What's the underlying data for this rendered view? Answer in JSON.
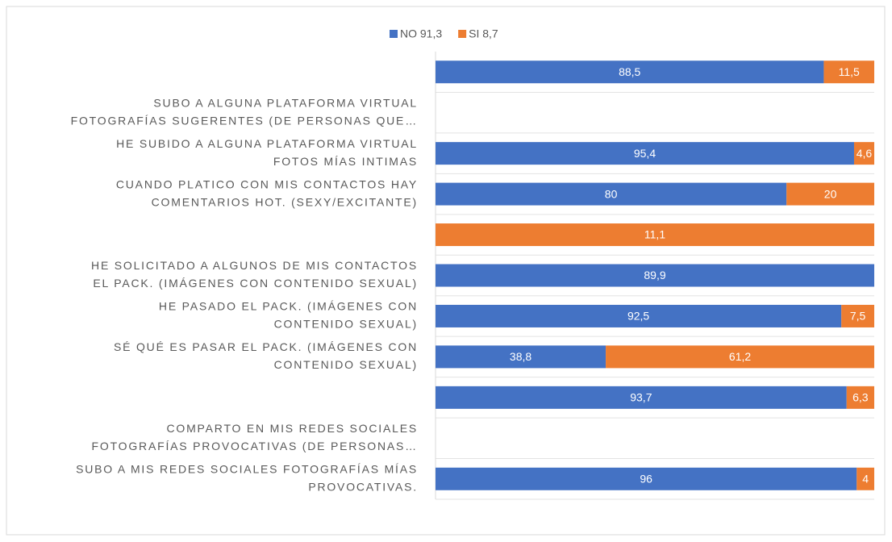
{
  "chart_data": {
    "type": "stacked_percent_bar",
    "categories": [
      null,
      [
        "SUBO A ALGUNA PLATAFORMA VIRTUAL",
        "FOTOGRAFÍAS SUGERENTES (DE PERSONAS QUE…"
      ],
      [
        "HE SUBIDO A ALGUNA PLATAFORMA VIRTUAL",
        "FOTOS MÍAS INTIMAS"
      ],
      [
        "CUANDO PLATICO CON MIS CONTACTOS HAY",
        "COMENTARIOS HOT. (SEXY/EXCITANTE)"
      ],
      null,
      [
        "HE SOLICITADO A ALGUNOS DE MIS CONTACTOS",
        "EL PACK. (IMÁGENES CON CONTENIDO SEXUAL)"
      ],
      [
        "HE PASADO EL PACK. (IMÁGENES CON",
        "CONTENIDO SEXUAL)"
      ],
      [
        "SÉ QUÉ ES PASAR EL PACK. (IMÁGENES CON",
        "CONTENIDO SEXUAL)"
      ],
      null,
      [
        "COMPARTO EN MIS REDES SOCIALES",
        "FOTOGRAFÍAS PROVOCATIVAS (DE PERSONAS…"
      ],
      [
        "SUBO A MIS REDES SOCIALES FOTOGRAFÍAS MÍAS",
        "PROVOCATIVAS."
      ]
    ],
    "series": [
      {
        "name": "NO 91,3",
        "color": "#4472c4",
        "values": [
          88.5,
          null,
          95.4,
          80,
          null,
          89.9,
          92.5,
          38.8,
          93.7,
          null,
          96
        ],
        "value_labels": [
          "88,5",
          null,
          "95,4",
          "80",
          null,
          "89,9",
          "92,5",
          "38,8",
          "93,7",
          null,
          "96"
        ]
      },
      {
        "name": "SI 8,7",
        "color": "#ed7d31",
        "values": [
          11.5,
          null,
          4.6,
          20,
          11.1,
          null,
          7.5,
          61.2,
          6.3,
          null,
          4
        ],
        "value_labels": [
          "11,5",
          null,
          "4,6",
          "20",
          "11,1",
          null,
          "7,5",
          "61,2",
          "6,3",
          null,
          "4"
        ]
      }
    ],
    "legend": "top"
  }
}
